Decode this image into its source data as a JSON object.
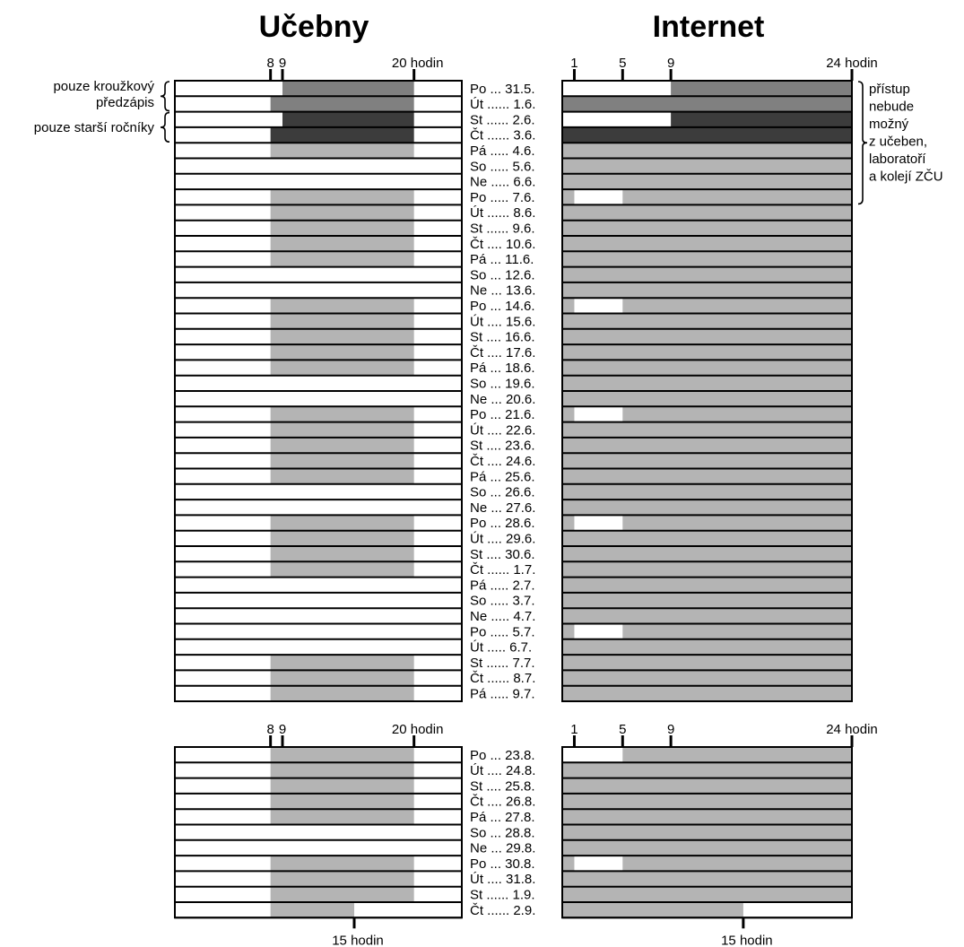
{
  "titles": {
    "left": "Učebny",
    "right": "Internet"
  },
  "colors": {
    "available": "#b4b4b4",
    "restricted_medium": "#808080",
    "restricted_dark": "#3c3c3c",
    "empty": "#ffffff",
    "outline": "#000000"
  },
  "axes": {
    "left_ticks": [
      {
        "hour": 8,
        "label": "8"
      },
      {
        "hour": 9,
        "label": "9"
      },
      {
        "hour": 20,
        "label": "20 hodin"
      }
    ],
    "right_ticks": [
      {
        "hour": 1,
        "label": "1"
      },
      {
        "hour": 5,
        "label": "5"
      },
      {
        "hour": 9,
        "label": "9"
      },
      {
        "hour": 24,
        "label": "24 hodin"
      }
    ],
    "left_bottom_tick": {
      "hour": 15,
      "label": "15 hodin"
    },
    "right_bottom_tick": {
      "hour": 15,
      "label": "15 hodin"
    }
  },
  "annotations": {
    "left": [
      {
        "lines": [
          "pouze kroužkový",
          "předzápis"
        ],
        "rows": [
          0,
          1
        ]
      },
      {
        "lines": [
          "pouze starší ročníky"
        ],
        "rows": [
          2,
          3
        ]
      }
    ],
    "right": {
      "lines": [
        "přístup",
        "nebude",
        "možný",
        "z učeben,",
        "laboratoří",
        "a kolejí ZČU"
      ],
      "rows": [
        0,
        7
      ]
    }
  },
  "chart_data": {
    "type": "timeline",
    "units": "hour of day",
    "sections": [
      {
        "rows": [
          {
            "label": "Po ... 31.5.",
            "ucebny": [
              [
                9,
                20,
                "restricted_medium"
              ]
            ],
            "internet": [
              [
                9,
                24,
                "restricted_medium"
              ]
            ]
          },
          {
            "label": "Út ...... 1.6.",
            "ucebny": [
              [
                8,
                20,
                "restricted_medium"
              ]
            ],
            "internet": [
              [
                0,
                24,
                "restricted_medium"
              ]
            ]
          },
          {
            "label": "St ...... 2.6.",
            "ucebny": [
              [
                9,
                20,
                "restricted_dark"
              ]
            ],
            "internet": [
              [
                9,
                24,
                "restricted_dark"
              ]
            ]
          },
          {
            "label": "Čt ...... 3.6.",
            "ucebny": [
              [
                8,
                20,
                "restricted_dark"
              ]
            ],
            "internet": [
              [
                0,
                24,
                "restricted_dark"
              ]
            ]
          },
          {
            "label": "Pá ..... 4.6.",
            "ucebny": [
              [
                8,
                20,
                "available"
              ]
            ],
            "internet": [
              [
                0,
                24,
                "available"
              ]
            ]
          },
          {
            "label": "So ..... 5.6.",
            "ucebny": [],
            "internet": [
              [
                0,
                24,
                "available"
              ]
            ]
          },
          {
            "label": "Ne ..... 6.6.",
            "ucebny": [],
            "internet": [
              [
                0,
                24,
                "available"
              ]
            ]
          },
          {
            "label": "Po ..... 7.6.",
            "ucebny": [
              [
                8,
                20,
                "available"
              ]
            ],
            "internet": [
              [
                0,
                1,
                "available"
              ],
              [
                5,
                24,
                "available"
              ]
            ]
          },
          {
            "label": "Út ...... 8.6.",
            "ucebny": [
              [
                8,
                20,
                "available"
              ]
            ],
            "internet": [
              [
                0,
                24,
                "available"
              ]
            ]
          },
          {
            "label": "St ...... 9.6.",
            "ucebny": [
              [
                8,
                20,
                "available"
              ]
            ],
            "internet": [
              [
                0,
                24,
                "available"
              ]
            ]
          },
          {
            "label": "Čt .... 10.6.",
            "ucebny": [
              [
                8,
                20,
                "available"
              ]
            ],
            "internet": [
              [
                0,
                24,
                "available"
              ]
            ]
          },
          {
            "label": "Pá ... 11.6.",
            "ucebny": [
              [
                8,
                20,
                "available"
              ]
            ],
            "internet": [
              [
                0,
                24,
                "available"
              ]
            ]
          },
          {
            "label": "So ... 12.6.",
            "ucebny": [],
            "internet": [
              [
                0,
                24,
                "available"
              ]
            ]
          },
          {
            "label": "Ne ... 13.6.",
            "ucebny": [],
            "internet": [
              [
                0,
                24,
                "available"
              ]
            ]
          },
          {
            "label": "Po ... 14.6.",
            "ucebny": [
              [
                8,
                20,
                "available"
              ]
            ],
            "internet": [
              [
                0,
                1,
                "available"
              ],
              [
                5,
                24,
                "available"
              ]
            ]
          },
          {
            "label": "Út .... 15.6.",
            "ucebny": [
              [
                8,
                20,
                "available"
              ]
            ],
            "internet": [
              [
                0,
                24,
                "available"
              ]
            ]
          },
          {
            "label": "St .... 16.6.",
            "ucebny": [
              [
                8,
                20,
                "available"
              ]
            ],
            "internet": [
              [
                0,
                24,
                "available"
              ]
            ]
          },
          {
            "label": "Čt .... 17.6.",
            "ucebny": [
              [
                8,
                20,
                "available"
              ]
            ],
            "internet": [
              [
                0,
                24,
                "available"
              ]
            ]
          },
          {
            "label": "Pá ... 18.6.",
            "ucebny": [
              [
                8,
                20,
                "available"
              ]
            ],
            "internet": [
              [
                0,
                24,
                "available"
              ]
            ]
          },
          {
            "label": "So ... 19.6.",
            "ucebny": [],
            "internet": [
              [
                0,
                24,
                "available"
              ]
            ]
          },
          {
            "label": "Ne ... 20.6.",
            "ucebny": [],
            "internet": [
              [
                0,
                24,
                "available"
              ]
            ]
          },
          {
            "label": "Po ... 21.6.",
            "ucebny": [
              [
                8,
                20,
                "available"
              ]
            ],
            "internet": [
              [
                0,
                1,
                "available"
              ],
              [
                5,
                24,
                "available"
              ]
            ]
          },
          {
            "label": "Út .... 22.6.",
            "ucebny": [
              [
                8,
                20,
                "available"
              ]
            ],
            "internet": [
              [
                0,
                24,
                "available"
              ]
            ]
          },
          {
            "label": "St .... 23.6.",
            "ucebny": [
              [
                8,
                20,
                "available"
              ]
            ],
            "internet": [
              [
                0,
                24,
                "available"
              ]
            ]
          },
          {
            "label": "Čt .... 24.6.",
            "ucebny": [
              [
                8,
                20,
                "available"
              ]
            ],
            "internet": [
              [
                0,
                24,
                "available"
              ]
            ]
          },
          {
            "label": "Pá ... 25.6.",
            "ucebny": [
              [
                8,
                20,
                "available"
              ]
            ],
            "internet": [
              [
                0,
                24,
                "available"
              ]
            ]
          },
          {
            "label": "So ... 26.6.",
            "ucebny": [],
            "internet": [
              [
                0,
                24,
                "available"
              ]
            ]
          },
          {
            "label": "Ne ... 27.6.",
            "ucebny": [],
            "internet": [
              [
                0,
                24,
                "available"
              ]
            ]
          },
          {
            "label": "Po ... 28.6.",
            "ucebny": [
              [
                8,
                20,
                "available"
              ]
            ],
            "internet": [
              [
                0,
                1,
                "available"
              ],
              [
                5,
                24,
                "available"
              ]
            ]
          },
          {
            "label": "Út .... 29.6.",
            "ucebny": [
              [
                8,
                20,
                "available"
              ]
            ],
            "internet": [
              [
                0,
                24,
                "available"
              ]
            ]
          },
          {
            "label": "St .... 30.6.",
            "ucebny": [
              [
                8,
                20,
                "available"
              ]
            ],
            "internet": [
              [
                0,
                24,
                "available"
              ]
            ]
          },
          {
            "label": "Čt ...... 1.7.",
            "ucebny": [
              [
                8,
                20,
                "available"
              ]
            ],
            "internet": [
              [
                0,
                24,
                "available"
              ]
            ]
          },
          {
            "label": "Pá ..... 2.7.",
            "ucebny": [],
            "internet": [
              [
                0,
                24,
                "available"
              ]
            ]
          },
          {
            "label": "So ..... 3.7.",
            "ucebny": [],
            "internet": [
              [
                0,
                24,
                "available"
              ]
            ]
          },
          {
            "label": "Ne ..... 4.7.",
            "ucebny": [],
            "internet": [
              [
                0,
                24,
                "available"
              ]
            ]
          },
          {
            "label": "Po ..... 5.7.",
            "ucebny": [],
            "internet": [
              [
                0,
                1,
                "available"
              ],
              [
                5,
                24,
                "available"
              ]
            ]
          },
          {
            "label": "Út ..... 6.7.",
            "ucebny": [],
            "internet": [
              [
                0,
                24,
                "available"
              ]
            ]
          },
          {
            "label": "St ...... 7.7.",
            "ucebny": [
              [
                8,
                20,
                "available"
              ]
            ],
            "internet": [
              [
                0,
                24,
                "available"
              ]
            ]
          },
          {
            "label": "Čt ...... 8.7.",
            "ucebny": [
              [
                8,
                20,
                "available"
              ]
            ],
            "internet": [
              [
                0,
                24,
                "available"
              ]
            ]
          },
          {
            "label": "Pá ..... 9.7.",
            "ucebny": [
              [
                8,
                20,
                "available"
              ]
            ],
            "internet": [
              [
                0,
                24,
                "available"
              ]
            ]
          }
        ]
      },
      {
        "rows": [
          {
            "label": "Po ... 23.8.",
            "ucebny": [
              [
                8,
                20,
                "available"
              ]
            ],
            "internet": [
              [
                5,
                24,
                "available"
              ]
            ]
          },
          {
            "label": "Út .... 24.8.",
            "ucebny": [
              [
                8,
                20,
                "available"
              ]
            ],
            "internet": [
              [
                0,
                24,
                "available"
              ]
            ]
          },
          {
            "label": "St .... 25.8.",
            "ucebny": [
              [
                8,
                20,
                "available"
              ]
            ],
            "internet": [
              [
                0,
                24,
                "available"
              ]
            ]
          },
          {
            "label": "Čt .... 26.8.",
            "ucebny": [
              [
                8,
                20,
                "available"
              ]
            ],
            "internet": [
              [
                0,
                24,
                "available"
              ]
            ]
          },
          {
            "label": "Pá ... 27.8.",
            "ucebny": [
              [
                8,
                20,
                "available"
              ]
            ],
            "internet": [
              [
                0,
                24,
                "available"
              ]
            ]
          },
          {
            "label": "So ... 28.8.",
            "ucebny": [],
            "internet": [
              [
                0,
                24,
                "available"
              ]
            ]
          },
          {
            "label": "Ne ... 29.8.",
            "ucebny": [],
            "internet": [
              [
                0,
                24,
                "available"
              ]
            ]
          },
          {
            "label": "Po ... 30.8.",
            "ucebny": [
              [
                8,
                20,
                "available"
              ]
            ],
            "internet": [
              [
                0,
                1,
                "available"
              ],
              [
                5,
                24,
                "available"
              ]
            ]
          },
          {
            "label": "Út .... 31.8.",
            "ucebny": [
              [
                8,
                20,
                "available"
              ]
            ],
            "internet": [
              [
                0,
                24,
                "available"
              ]
            ]
          },
          {
            "label": "St ...... 1.9.",
            "ucebny": [
              [
                8,
                20,
                "available"
              ]
            ],
            "internet": [
              [
                0,
                24,
                "available"
              ]
            ]
          },
          {
            "label": "Čt ...... 2.9.",
            "ucebny": [
              [
                8,
                15,
                "available"
              ]
            ],
            "internet": [
              [
                0,
                15,
                "available"
              ]
            ]
          }
        ]
      }
    ]
  }
}
